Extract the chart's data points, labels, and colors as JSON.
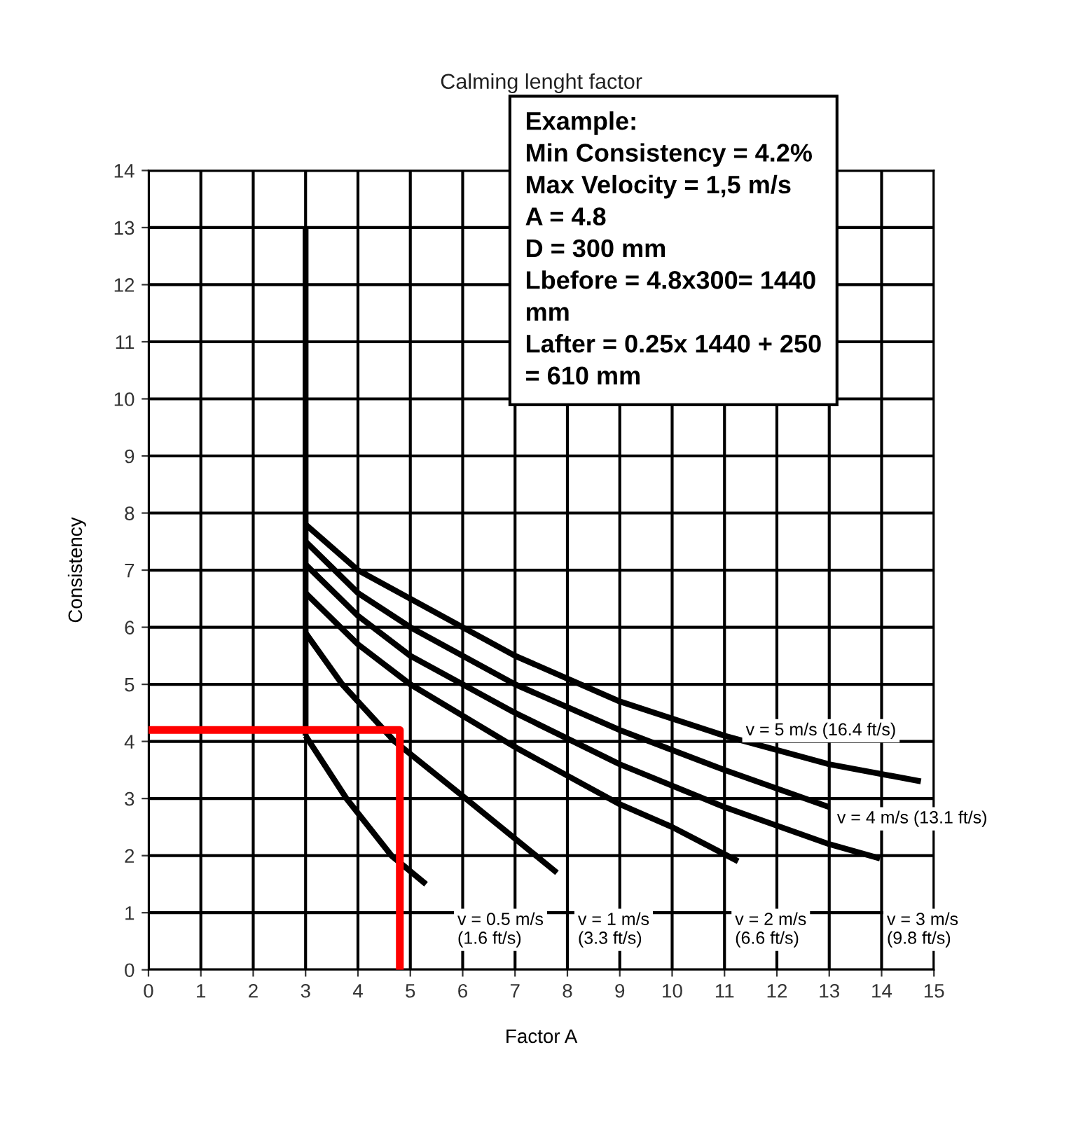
{
  "chart_data": {
    "type": "line",
    "title": "Calming lenght factor",
    "xlabel": "Factor A",
    "ylabel": "Consistency",
    "xlim": [
      0,
      15
    ],
    "ylim": [
      0,
      14
    ],
    "xticks": [
      0,
      1,
      2,
      3,
      4,
      5,
      6,
      7,
      8,
      9,
      10,
      11,
      12,
      13,
      14,
      15
    ],
    "yticks": [
      0,
      1,
      2,
      3,
      4,
      5,
      6,
      7,
      8,
      9,
      10,
      11,
      12,
      13,
      14
    ],
    "grid": true,
    "legend": false,
    "marker": "none",
    "line_style": "solid",
    "series": [
      {
        "color": "#000000",
        "x": [
          3,
          3
        ],
        "values": [
          4.1,
          13
        ]
      },
      {
        "color": "#000000",
        "x": [
          3,
          3.78,
          4.64,
          5.3
        ],
        "values": [
          4.1,
          3.0,
          2.0,
          1.5
        ]
      },
      {
        "color": "#000000",
        "x": [
          3,
          3.7,
          4.7,
          6.06,
          7.8
        ],
        "values": [
          5.9,
          5.0,
          4.0,
          3.0,
          1.7
        ]
      },
      {
        "color": "#000000",
        "x": [
          3,
          4,
          5,
          7,
          9,
          10,
          11.26
        ],
        "values": [
          6.6,
          5.7,
          5.0,
          3.9,
          2.9,
          2.5,
          1.9
        ]
      },
      {
        "color": "#000000",
        "x": [
          3,
          4,
          5,
          7,
          9,
          11,
          13,
          13.97
        ],
        "values": [
          7.1,
          6.2,
          5.5,
          4.5,
          3.6,
          2.85,
          2.2,
          1.95
        ]
      },
      {
        "color": "#000000",
        "x": [
          3,
          4,
          5,
          7,
          9,
          11,
          13
        ],
        "values": [
          7.5,
          6.6,
          6.0,
          5.0,
          4.2,
          3.5,
          2.85
        ]
      },
      {
        "color": "#000000",
        "x": [
          3,
          4,
          5,
          7,
          9,
          11,
          13,
          14.75
        ],
        "values": [
          7.8,
          7.0,
          6.5,
          5.5,
          4.7,
          4.1,
          3.6,
          3.3
        ]
      },
      {
        "color": "#ff0000",
        "x": [
          0,
          4.8,
          4.8
        ],
        "values": [
          4.2,
          4.2,
          0
        ]
      }
    ],
    "annotations": [
      "v = 0.5 m/s\n(1.6 ft/s)",
      "v = 1 m/s\n(3.3 ft/s)",
      "v = 2 m/s\n(6.6 ft/s)",
      "v = 3 m/s\n(9.8 ft/s)",
      {
        "text": "v = 4 m/s (13.1 ft/s)",
        "x": 13,
        "y": 2.85
      },
      {
        "text": "v = 5 m/s (16.4 ft/s)",
        "x": 14.75,
        "y": 3.3
      },
      "Example:\nMin Consistency = 4.2%\nMax Velocity = 1,5 m/s\nA = 4.8\nD = 300 mm\nLbefore = 4.8x300= 1440\nmm\nLafter = 0.25x 1440 + 250\n= 610 mm"
    ]
  }
}
